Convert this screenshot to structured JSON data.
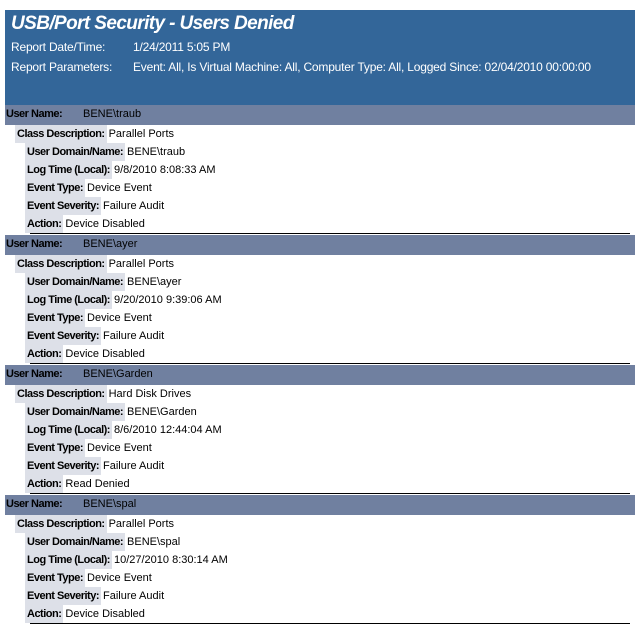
{
  "header": {
    "title": "USB/Port Security - Users Denied",
    "date_label": "Report Date/Time:",
    "date_value": "1/24/2011 5:05 PM",
    "params_label": "Report Parameters:",
    "params_value": "Event:  All, Is Virtual Machine:  All, Computer Type:  All, Logged Since: 02/04/2010 00:00:00"
  },
  "labels": {
    "user_name": "User Name:",
    "class_description": "Class Description:",
    "user_domain": "User Domain/Name:",
    "log_time": "Log Time (Local):",
    "event_type": "Event Type:",
    "event_severity": "Event Severity:",
    "action": "Action:"
  },
  "records": [
    {
      "user_name": "BENE\\traub",
      "class_description": "Parallel Ports",
      "user_domain": "BENE\\traub",
      "log_time": "9/8/2010 8:08:33 AM",
      "event_type": "Device Event",
      "event_severity": "Failure Audit",
      "action": "Device Disabled"
    },
    {
      "user_name": "BENE\\ayer",
      "class_description": "Parallel Ports",
      "user_domain": "BENE\\ayer",
      "log_time": "9/20/2010 9:39:06 AM",
      "event_type": "Device Event",
      "event_severity": "Failure Audit",
      "action": "Device Disabled"
    },
    {
      "user_name": "BENE\\Garden",
      "class_description": "Hard Disk Drives",
      "user_domain": "BENE\\Garden",
      "log_time": "8/6/2010 12:44:04 AM",
      "event_type": "Device Event",
      "event_severity": "Failure Audit",
      "action": "Read Denied"
    },
    {
      "user_name": "BENE\\spal",
      "class_description": "Parallel Ports",
      "user_domain": "BENE\\spal",
      "log_time": "10/27/2010 8:30:14 AM",
      "event_type": "Device Event",
      "event_severity": "Failure Audit",
      "action": "Device Disabled"
    }
  ]
}
